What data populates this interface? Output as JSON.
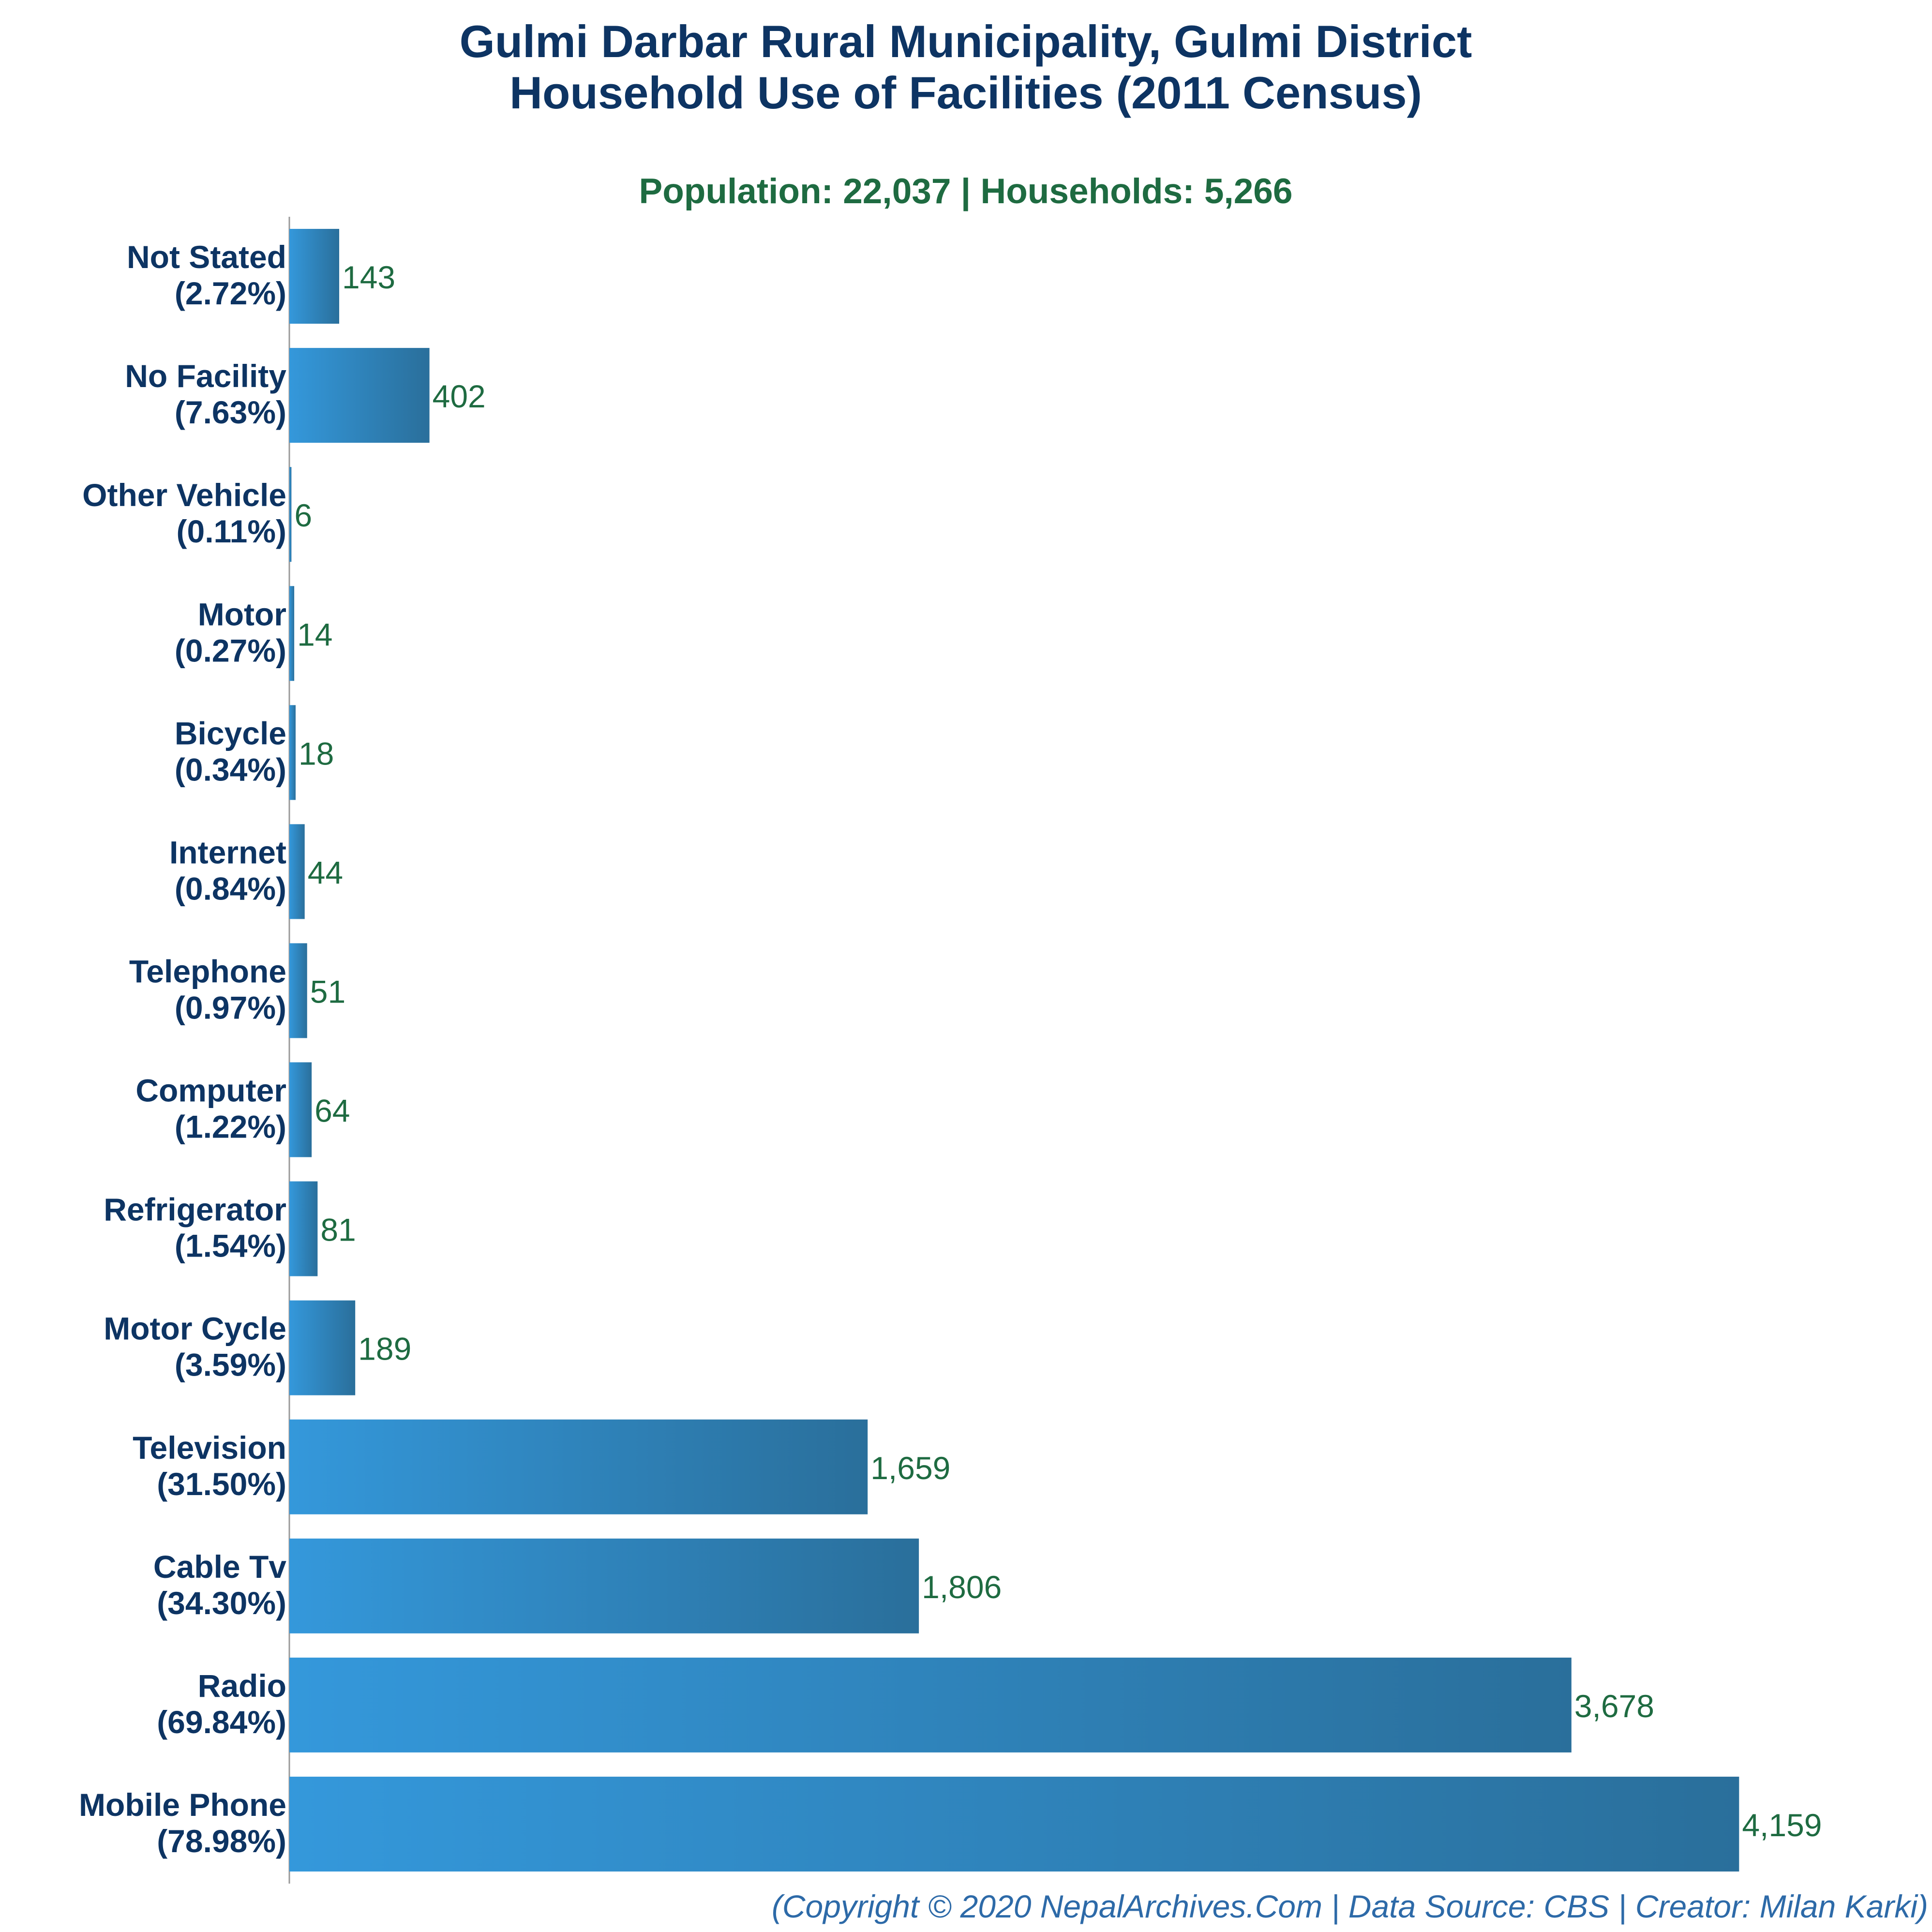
{
  "chart_data": {
    "type": "bar",
    "orientation": "horizontal",
    "title": [
      "Gulmi Darbar Rural Municipality, Gulmi District",
      "Household Use of Facilities (2011 Census)"
    ],
    "subtitle": "Population: 22,037 | Households: 5,266",
    "footer": "(Copyright © 2020 NepalArchives.Com | Data Source: CBS | Creator: Milan Karki)",
    "xlim": [
      0,
      4500
    ],
    "grid": false,
    "categories": [
      {
        "label": "Not Stated",
        "pct": "(2.72%)",
        "value": 143,
        "value_label": "143"
      },
      {
        "label": "No Facility",
        "pct": "(7.63%)",
        "value": 402,
        "value_label": "402"
      },
      {
        "label": "Other Vehicle",
        "pct": "(0.11%)",
        "value": 6,
        "value_label": "6"
      },
      {
        "label": "Motor",
        "pct": "(0.27%)",
        "value": 14,
        "value_label": "14"
      },
      {
        "label": "Bicycle",
        "pct": "(0.34%)",
        "value": 18,
        "value_label": "18"
      },
      {
        "label": "Internet",
        "pct": "(0.84%)",
        "value": 44,
        "value_label": "44"
      },
      {
        "label": "Telephone",
        "pct": "(0.97%)",
        "value": 51,
        "value_label": "51"
      },
      {
        "label": "Computer",
        "pct": "(1.22%)",
        "value": 64,
        "value_label": "64"
      },
      {
        "label": "Refrigerator",
        "pct": "(1.54%)",
        "value": 81,
        "value_label": "81"
      },
      {
        "label": "Motor Cycle",
        "pct": "(3.59%)",
        "value": 189,
        "value_label": "189"
      },
      {
        "label": "Television",
        "pct": "(31.50%)",
        "value": 1659,
        "value_label": "1,659"
      },
      {
        "label": "Cable Tv",
        "pct": "(34.30%)",
        "value": 1806,
        "value_label": "1,806"
      },
      {
        "label": "Radio",
        "pct": "(69.84%)",
        "value": 3678,
        "value_label": "3,678"
      },
      {
        "label": "Mobile Phone",
        "pct": "(78.98%)",
        "value": 4159,
        "value_label": "4,159"
      }
    ],
    "colors": {
      "title": "#0d3463",
      "subtitle": "#1e6b41",
      "value_label": "#1e6b41",
      "category_label": "#0d3463",
      "footer": "#2d6aa8",
      "bar_start": "#3498db",
      "bar_end": "#2a6f9b",
      "axis": "#999999"
    }
  }
}
